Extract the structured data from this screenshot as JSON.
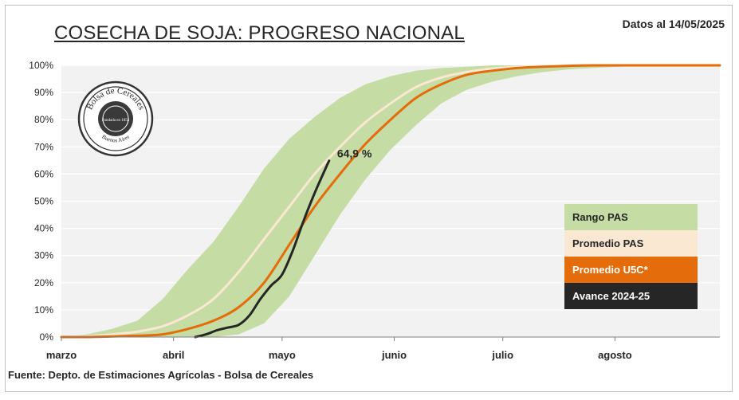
{
  "header": {
    "title": "COSECHA DE SOJA: PROGRESO NACIONAL",
    "date_label": "Datos al 14/05/2025"
  },
  "footer": {
    "source": "Fuente: Depto. de Estimaciones Agrícolas - Bolsa de Cereales"
  },
  "logo": {
    "text_top": "Bolsa de Cereales",
    "text_ring": "Fundada en 1854",
    "text_bottom": "Buenos Aires"
  },
  "colors": {
    "range_fill": "#c5dca4",
    "promedio_pas": "#fbe8d2",
    "promedio_u5c": "#e46c0a",
    "avance": "#262626",
    "plot_bg": "#f2f2f2",
    "grid": "#ffffff"
  },
  "legend": {
    "items": [
      {
        "label": "Rango PAS",
        "bg": "#c5dca4",
        "fg": "#262626"
      },
      {
        "label": "Promedio PAS",
        "bg": "#fbe8d2",
        "fg": "#262626"
      },
      {
        "label": "Promedio  U5C*",
        "bg": "#e46c0a",
        "fg": "#ffffff"
      },
      {
        "label": "Avance 2024-25",
        "bg": "#262626",
        "fg": "#ffffff"
      }
    ]
  },
  "chart_data": {
    "type": "area",
    "x_unit": "day of year",
    "xlim": [
      60,
      242
    ],
    "ylim": [
      0,
      100
    ],
    "yticks": [
      0,
      10,
      20,
      30,
      40,
      50,
      60,
      70,
      80,
      90,
      100
    ],
    "ytick_labels": [
      "0%",
      "10%",
      "20%",
      "30%",
      "40%",
      "50%",
      "60%",
      "70%",
      "80%",
      "90%",
      "100%"
    ],
    "xticks": [
      {
        "label": "marzo",
        "x": 60
      },
      {
        "label": "abril",
        "x": 91
      },
      {
        "label": "mayo",
        "x": 121
      },
      {
        "label": "junio",
        "x": 152
      },
      {
        "label": "julio",
        "x": 182
      },
      {
        "label": "agosto",
        "x": 213
      }
    ],
    "grid": "horizontal",
    "legend_position": "right",
    "range_pas": {
      "name": "Rango PAS",
      "x": [
        60,
        67,
        74,
        81,
        88,
        95,
        102,
        109,
        116,
        123,
        130,
        137,
        144,
        151,
        158,
        165,
        172,
        179,
        186,
        193,
        200,
        207,
        214,
        221,
        228,
        235,
        242
      ],
      "upper": [
        0,
        1,
        3,
        6,
        14,
        25,
        35,
        48,
        62,
        73,
        81,
        88,
        93,
        96,
        98,
        99,
        99.5,
        100,
        100,
        100,
        100,
        100,
        100,
        100,
        100,
        100,
        100
      ],
      "lower": [
        0,
        0,
        0,
        0,
        0,
        0,
        0,
        1,
        5,
        15,
        30,
        45,
        58,
        69,
        78,
        86,
        91,
        94,
        96,
        97.5,
        98.5,
        99,
        99.5,
        99.8,
        100,
        100,
        100
      ]
    },
    "series": [
      {
        "name": "Promedio PAS",
        "x": [
          60,
          67,
          74,
          81,
          88,
          95,
          102,
          109,
          116,
          123,
          130,
          137,
          144,
          151,
          158,
          165,
          172,
          179,
          186,
          193,
          200,
          207,
          214,
          221,
          228,
          235,
          242
        ],
        "y": [
          0,
          0.3,
          1,
          2,
          4,
          8,
          14,
          24,
          36,
          48,
          60,
          70,
          79,
          86,
          92,
          95.5,
          97.5,
          98.8,
          99.4,
          99.7,
          99.9,
          100,
          100,
          100,
          100,
          100,
          100
        ]
      },
      {
        "name": "Promedio  U5C*",
        "x": [
          60,
          67,
          74,
          81,
          88,
          95,
          102,
          109,
          116,
          123,
          130,
          137,
          144,
          151,
          158,
          165,
          172,
          179,
          186,
          193,
          200,
          207,
          214,
          221,
          228,
          235,
          242
        ],
        "y": [
          0,
          0,
          0.2,
          0.5,
          1,
          3,
          6,
          11,
          20,
          34,
          48,
          60,
          71,
          80,
          88,
          93,
          96.5,
          98,
          99,
          99.5,
          99.8,
          100,
          100,
          100,
          100,
          100,
          100
        ]
      },
      {
        "name": "Avance 2024-25",
        "x": [
          97,
          100,
          103,
          106,
          109,
          112,
          115,
          118,
          121,
          124,
          127,
          130,
          133,
          134
        ],
        "y": [
          0,
          1,
          2.5,
          3.5,
          4.5,
          8,
          14,
          19,
          23,
          32,
          43,
          53,
          62,
          64.9
        ]
      }
    ],
    "annotations": [
      {
        "text": "64,9 %",
        "x": 134,
        "y": 64.9
      }
    ]
  }
}
